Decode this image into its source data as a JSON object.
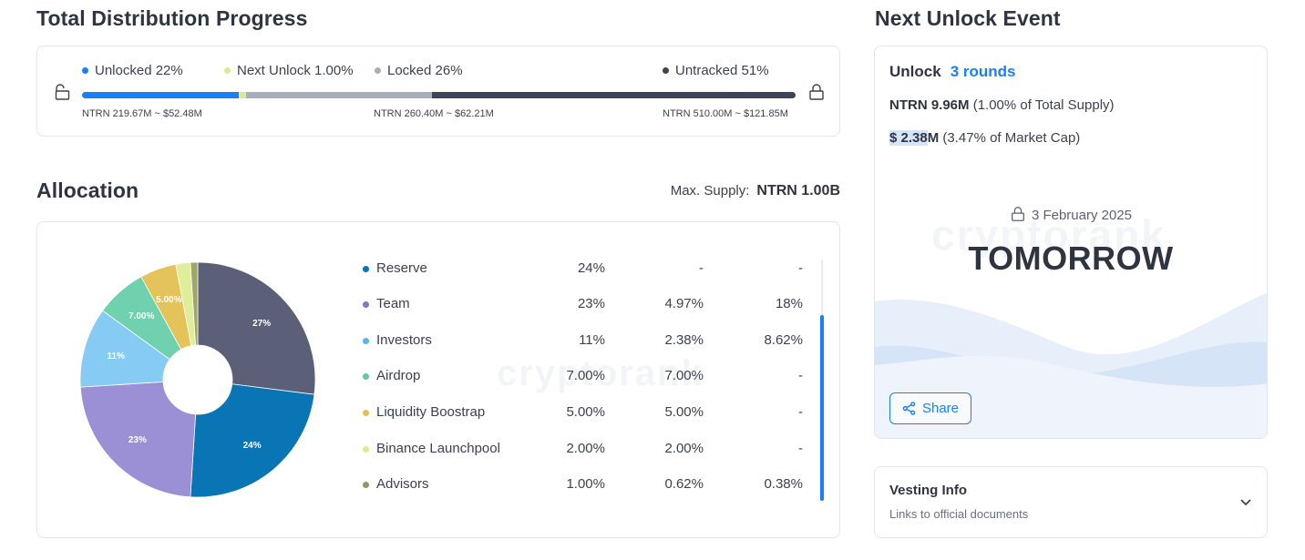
{
  "distribution": {
    "title": "Total Distribution Progress",
    "legend": [
      {
        "label": "Unlocked 22%",
        "color": "#1a7ff5"
      },
      {
        "label": "Next Unlock 1.00%",
        "color": "#d8eb90"
      },
      {
        "label": "Locked 26%",
        "color": "#a9aebb"
      },
      {
        "label": "Untracked 51%",
        "color": "#3e4359"
      }
    ],
    "progress_fractions": {
      "unlocked": 0.22,
      "next_unlock": 0.01,
      "locked": 0.26,
      "untracked": 0.51
    },
    "amounts": [
      "NTRN 219.67M ~ $52.48M",
      "NTRN 260.40M ~ $62.21M",
      "NTRN 510.00M ~ $121.85M"
    ]
  },
  "allocation": {
    "title": "Allocation",
    "max_supply_label": "Max. Supply:",
    "max_supply_value": "NTRN 1.00B",
    "watermark": "cryptorank",
    "rows": [
      {
        "name": "Reserve",
        "color": "#0a75b5",
        "c1": "24%",
        "c2": "-",
        "c3": "-"
      },
      {
        "name": "Team",
        "color": "#8474cc",
        "c1": "23%",
        "c2": "4.97%",
        "c3": "18%"
      },
      {
        "name": "Investors",
        "color": "#5cb4ef",
        "c1": "11%",
        "c2": "2.38%",
        "c3": "8.62%"
      },
      {
        "name": "Airdrop",
        "color": "#60c9a4",
        "c1": "7.00%",
        "c2": "7.00%",
        "c3": "-"
      },
      {
        "name": "Liquidity Boostrap",
        "color": "#e0c255",
        "c1": "5.00%",
        "c2": "5.00%",
        "c3": "-"
      },
      {
        "name": "Binance Launchpool",
        "color": "#dbec8c",
        "c1": "2.00%",
        "c2": "2.00%",
        "c3": "-"
      },
      {
        "name": "Advisors",
        "color": "#8f9a5c",
        "c1": "1.00%",
        "c2": "0.62%",
        "c3": "0.38%"
      }
    ]
  },
  "chart_data": {
    "type": "pie",
    "categories": [
      "Untracked",
      "Reserve",
      "Team",
      "Investors",
      "Airdrop",
      "Liquidity Boostrap",
      "Binance Launchpool",
      "Advisors"
    ],
    "values": [
      27,
      24,
      23,
      11,
      7,
      5,
      2,
      1
    ],
    "slice_labels": [
      "27%",
      "24%",
      "23%",
      "11%",
      "7.00%",
      "5.00%",
      "",
      ""
    ],
    "colors": [
      "#5b5f78",
      "#0a75b5",
      "#9b8fd6",
      "#86cbf3",
      "#6fd1ae",
      "#e4c45a",
      "#dfee98",
      "#9ea66a"
    ],
    "donut": true
  },
  "unlock": {
    "title": "Next Unlock Event",
    "label": "Unlock",
    "rounds": "3 rounds",
    "tokens_value": "NTRN 9.96M",
    "tokens_note": "(1.00% of Total Supply)",
    "usd_highlight": "$ 2.38",
    "usd_rest": "M",
    "usd_note": "(3.47% of Market Cap)",
    "date": "3 February 2025",
    "countdown": "TOMORROW",
    "watermark": "cryptorank",
    "share_label": "Share"
  },
  "vesting": {
    "title": "Vesting Info",
    "subtitle": "Links to official documents"
  }
}
